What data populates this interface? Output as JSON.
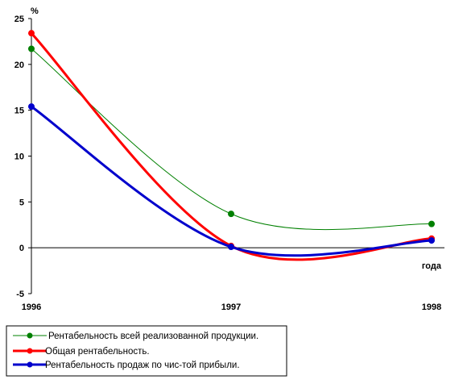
{
  "chart_data": {
    "type": "line",
    "title": "",
    "ylabel": "%",
    "xlabel": "года",
    "categories": [
      "1996",
      "1997",
      "1998"
    ],
    "ylim": [
      -5,
      25
    ],
    "yticks": [
      -5,
      0,
      5,
      10,
      15,
      20,
      25
    ],
    "grid": false,
    "legend_position": "bottom-left",
    "smooth": true,
    "series": [
      {
        "name": "Рентабельность всей реализованной продукции.",
        "values": [
          21.7,
          3.7,
          2.6
        ],
        "color": "#008000",
        "width": "thin"
      },
      {
        "name": "Общая рентабельность.",
        "values": [
          23.4,
          0.2,
          1.0
        ],
        "color": "#ff0000",
        "width": "thick"
      },
      {
        "name": "Рентабельность продаж по чис-той прибыли.",
        "values": [
          15.4,
          0.1,
          0.8
        ],
        "color": "#0000cc",
        "width": "thick"
      }
    ]
  }
}
